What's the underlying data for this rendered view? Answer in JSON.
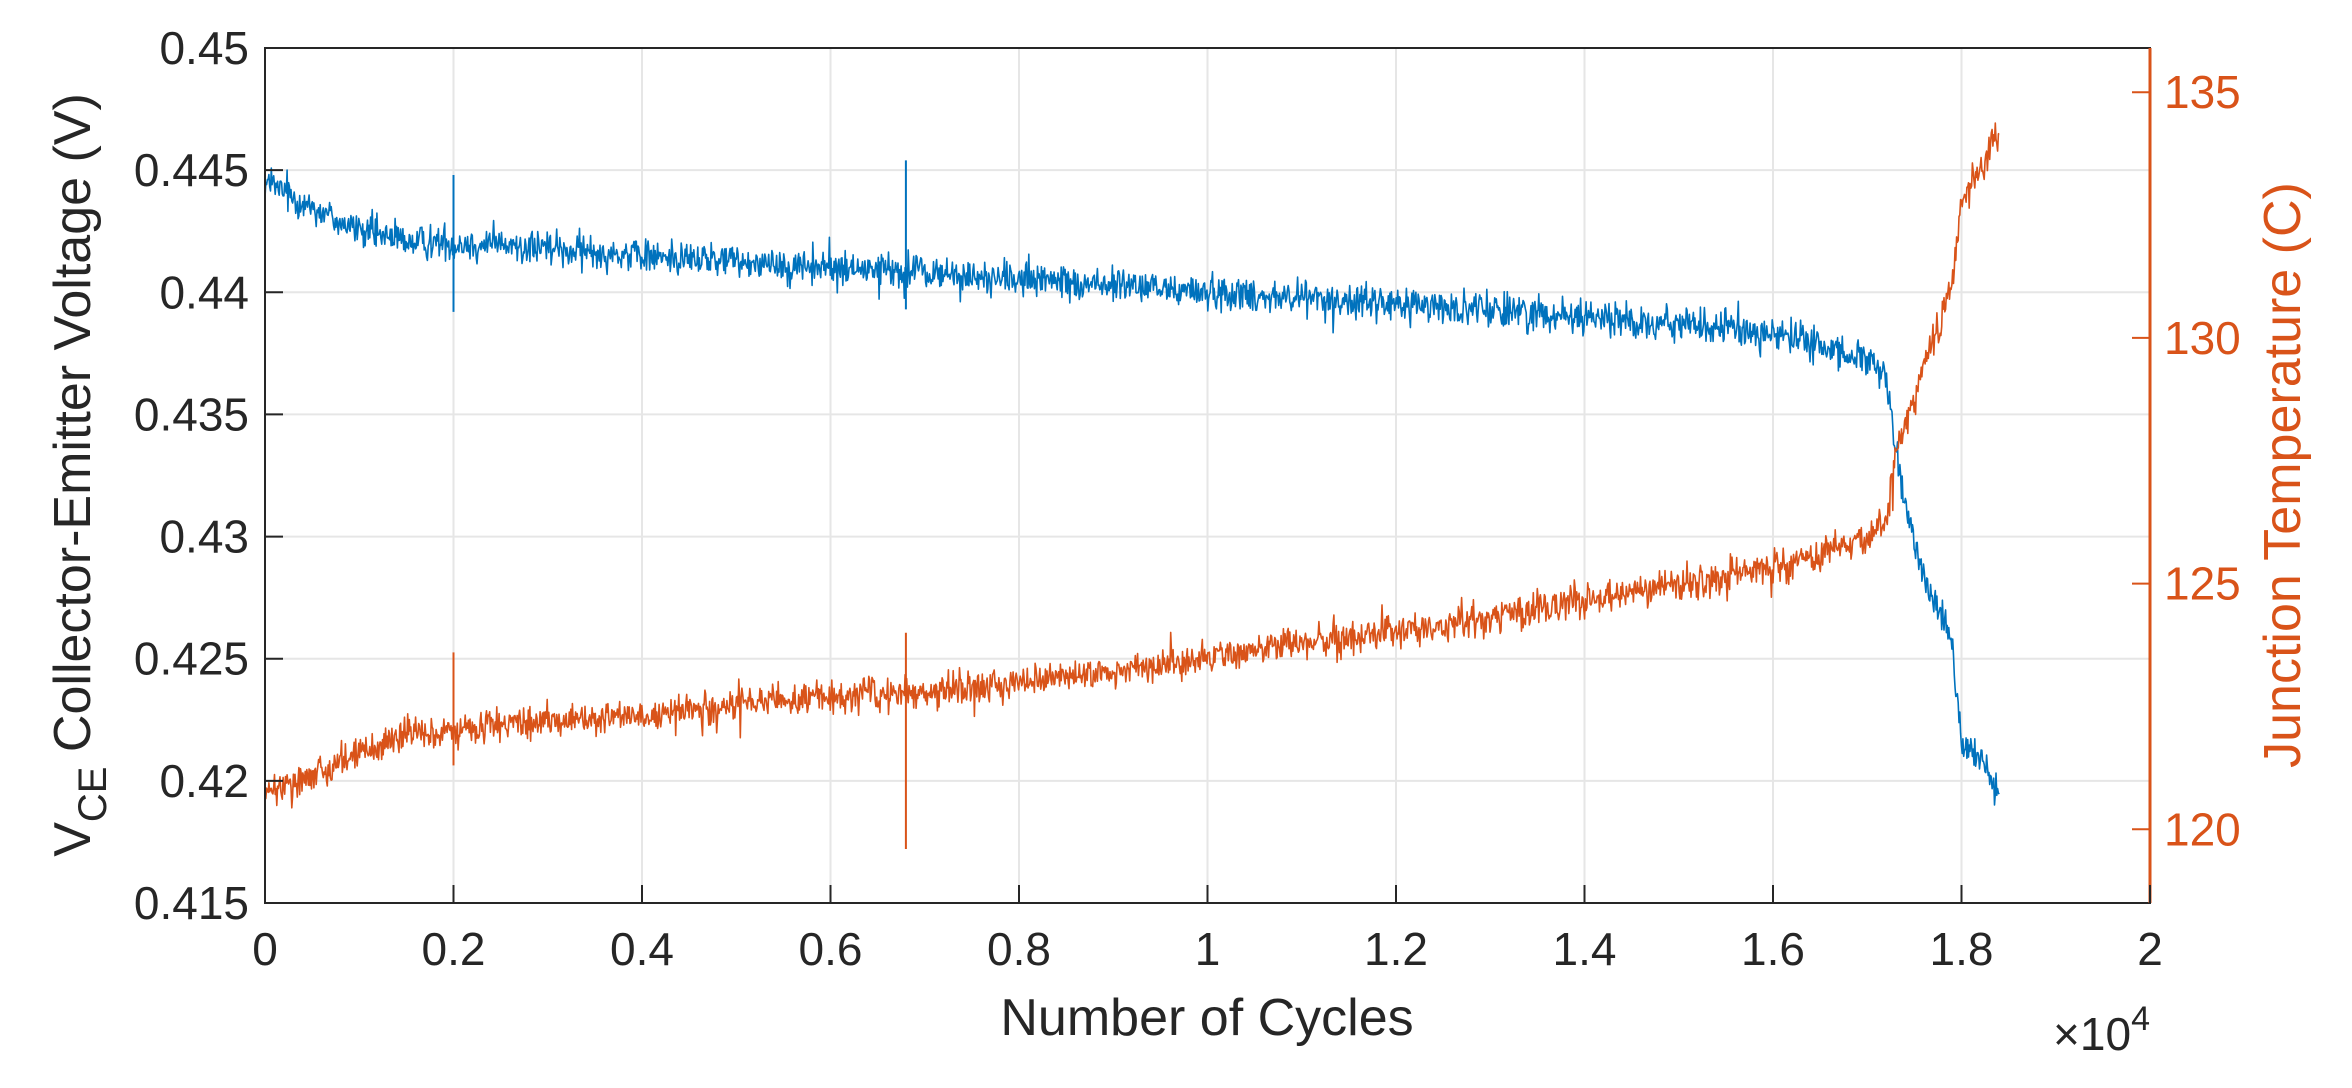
{
  "chart_data": {
    "type": "line",
    "title": "",
    "xlabel": "Number of Cycles",
    "x_exponent_label": "×10",
    "x_exponent_power": "4",
    "ylabel_left_main": "V",
    "ylabel_left_sub": "CE",
    "ylabel_left_rest": " Collector-Emitter Voltage (V)",
    "ylabel_right": "Junction Temperature (C)",
    "xlim": [
      0,
      2
    ],
    "ylim_left": [
      0.415,
      0.45
    ],
    "ylim_right": [
      118.5,
      135.9
    ],
    "x_ticks": [
      0,
      0.2,
      0.4,
      0.6,
      0.8,
      1,
      1.2,
      1.4,
      1.6,
      1.8,
      2
    ],
    "x_tick_labels": [
      "0",
      "0.2",
      "0.4",
      "0.6",
      "0.8",
      "1",
      "1.2",
      "1.4",
      "1.6",
      "1.8",
      "2"
    ],
    "y_left_ticks": [
      0.415,
      0.42,
      0.425,
      0.43,
      0.435,
      0.44,
      0.445,
      0.45
    ],
    "y_left_tick_labels": [
      "0.415",
      "0.42",
      "0.425",
      "0.43",
      "0.435",
      "0.44",
      "0.445",
      "0.45"
    ],
    "y_right_ticks": [
      120,
      125,
      130,
      135
    ],
    "y_right_tick_labels": [
      "120",
      "125",
      "130",
      "135"
    ],
    "grid": true,
    "colors": {
      "vce": "#0072BD",
      "temp": "#D95319",
      "axis": "#262626",
      "grid": "#e6e6e6"
    },
    "series": [
      {
        "name": "VCE Collector-Emitter Voltage",
        "axis": "left",
        "color": "#0072BD",
        "x": [
          0,
          0.05,
          0.1,
          0.15,
          0.2,
          0.3,
          0.4,
          0.5,
          0.6,
          0.7,
          0.8,
          0.9,
          1.0,
          1.1,
          1.2,
          1.3,
          1.4,
          1.5,
          1.6,
          1.65,
          1.7,
          1.72,
          1.73,
          1.74,
          1.75,
          1.76,
          1.77,
          1.78,
          1.79,
          1.8,
          1.82,
          1.84
        ],
        "y": [
          0.4445,
          0.4435,
          0.4425,
          0.4421,
          0.442,
          0.4418,
          0.4415,
          0.4413,
          0.441,
          0.4408,
          0.4405,
          0.4403,
          0.44,
          0.4398,
          0.4395,
          0.4393,
          0.439,
          0.4387,
          0.4383,
          0.4378,
          0.4372,
          0.4365,
          0.4335,
          0.4312,
          0.4298,
          0.4285,
          0.4275,
          0.427,
          0.4255,
          0.4215,
          0.4208,
          0.4195
        ],
        "noise": 0.0008
      },
      {
        "name": "Junction Temperature",
        "axis": "right",
        "color": "#D95319",
        "x": [
          0,
          0.05,
          0.1,
          0.15,
          0.2,
          0.3,
          0.4,
          0.5,
          0.6,
          0.7,
          0.8,
          0.9,
          1.0,
          1.1,
          1.2,
          1.3,
          1.4,
          1.5,
          1.6,
          1.65,
          1.7,
          1.72,
          1.73,
          1.74,
          1.75,
          1.76,
          1.77,
          1.78,
          1.79,
          1.8,
          1.82,
          1.84
        ],
        "y": [
          120.7,
          121.1,
          121.6,
          121.9,
          122.0,
          122.2,
          122.3,
          122.5,
          122.7,
          122.8,
          123.0,
          123.2,
          123.5,
          123.8,
          124.0,
          124.3,
          124.7,
          125.0,
          125.3,
          125.6,
          125.9,
          126.3,
          127.6,
          128.2,
          128.8,
          129.4,
          129.9,
          130.4,
          131.2,
          132.8,
          133.4,
          134.2
        ],
        "noise": 0.38
      }
    ],
    "spikes": [
      {
        "series": 0,
        "x": 0.2,
        "y": [
          0.4392,
          0.4448
        ]
      },
      {
        "series": 0,
        "x": 0.68,
        "y": [
          0.4393,
          0.4454
        ]
      },
      {
        "series": 1,
        "x": 0.2,
        "y": [
          121.3,
          123.6
        ]
      },
      {
        "series": 1,
        "x": 0.68,
        "y": [
          119.6,
          124.0
        ]
      }
    ]
  }
}
